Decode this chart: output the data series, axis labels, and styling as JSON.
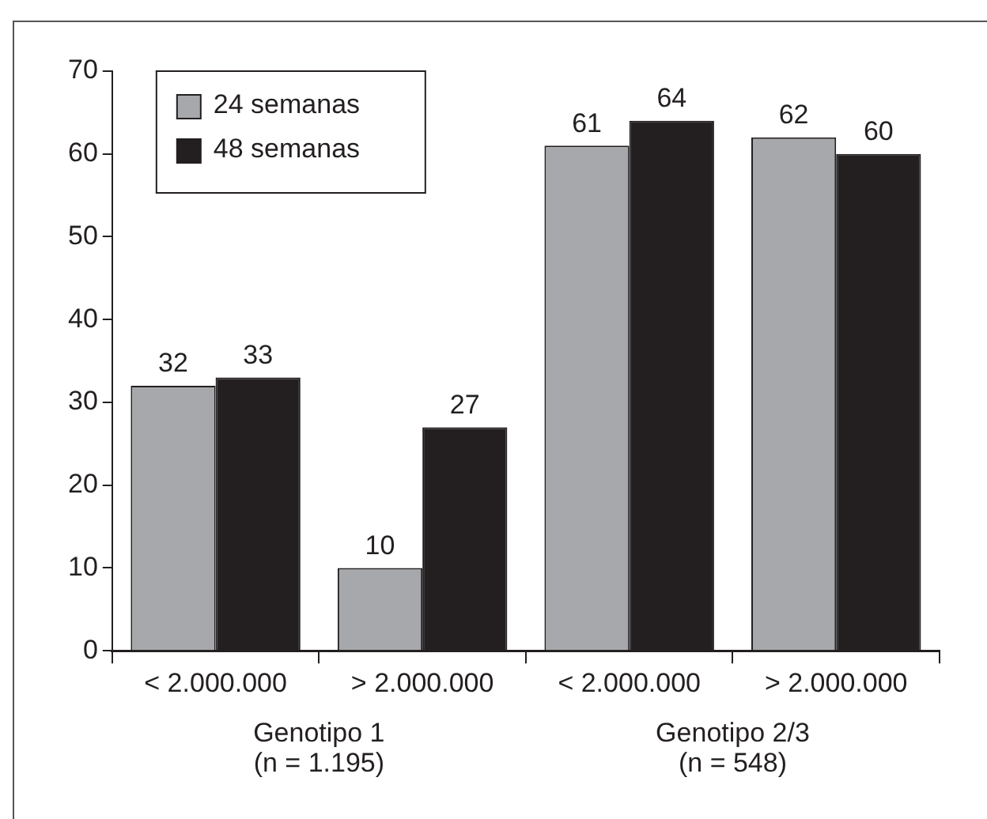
{
  "chart_data": {
    "type": "bar",
    "categories": [
      "< 2.000.000",
      "> 2.000.000",
      "< 2.000.000",
      "> 2.000.000"
    ],
    "series": [
      {
        "name": "24 semanas",
        "color": "#a7a8ab",
        "values": [
          32,
          10,
          61,
          62
        ]
      },
      {
        "name": "48 semanas",
        "color": "#231f20",
        "values": [
          33,
          27,
          64,
          60
        ]
      }
    ],
    "ylim": [
      0,
      70
    ],
    "yticks": [
      0,
      10,
      20,
      30,
      40,
      50,
      60,
      70
    ],
    "grid": false,
    "legend": "top left",
    "data_labels": true,
    "annotations": [
      "Genotipo 1\n(n = 1.195)",
      "Genotipo 2/3\n(n = 548)"
    ]
  }
}
